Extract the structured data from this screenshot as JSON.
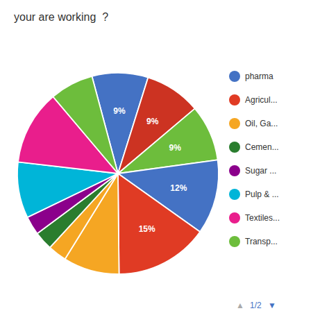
{
  "chart_data": {
    "type": "pie",
    "title": "your are working  ?",
    "values": [
      9,
      9,
      9,
      12,
      15,
      9,
      3,
      3,
      3,
      9,
      12,
      7
    ],
    "colors": [
      "#4472C4",
      "#CC3322",
      "#6DBD3C",
      "#4472C4",
      "#E03B24",
      "#F5A623",
      "#F5A623",
      "#2A7D2E",
      "#8B008B",
      "#00B5D8",
      "#E91E8C",
      "#6DBD3C"
    ],
    "data_labels": true,
    "value_labels": [
      "9%",
      "9%",
      "9%",
      "12%",
      "15%",
      null,
      null,
      null,
      null,
      null,
      null,
      null
    ],
    "legend": "right",
    "legend_labels": [
      "pharma",
      "Agricul...",
      "Oil, Ga...",
      "Cemen...",
      "Sugar ...",
      "Pulp & ...",
      "Textiles...",
      "Transp..."
    ],
    "legend_colors": [
      "#4472C4",
      "#E03B24",
      "#F5A623",
      "#2A7D2E",
      "#8B008B",
      "#00B5D8",
      "#E91E8C",
      "#6DBD3C"
    ],
    "annotations": [
      "▲",
      "1/2",
      "▼"
    ]
  }
}
